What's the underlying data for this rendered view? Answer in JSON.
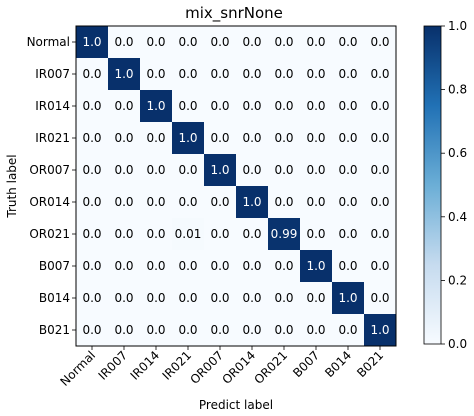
{
  "chart_data": {
    "type": "heatmap",
    "title": "mix_snrNone",
    "xlabel": "Predict label",
    "ylabel": "Truth label",
    "labels": [
      "Normal",
      "IR007",
      "IR014",
      "IR021",
      "OR007",
      "OR014",
      "OR021",
      "B007",
      "B014",
      "B021"
    ],
    "values": [
      [
        1.0,
        0.0,
        0.0,
        0.0,
        0.0,
        0.0,
        0.0,
        0.0,
        0.0,
        0.0
      ],
      [
        0.0,
        1.0,
        0.0,
        0.0,
        0.0,
        0.0,
        0.0,
        0.0,
        0.0,
        0.0
      ],
      [
        0.0,
        0.0,
        1.0,
        0.0,
        0.0,
        0.0,
        0.0,
        0.0,
        0.0,
        0.0
      ],
      [
        0.0,
        0.0,
        0.0,
        1.0,
        0.0,
        0.0,
        0.0,
        0.0,
        0.0,
        0.0
      ],
      [
        0.0,
        0.0,
        0.0,
        0.0,
        1.0,
        0.0,
        0.0,
        0.0,
        0.0,
        0.0
      ],
      [
        0.0,
        0.0,
        0.0,
        0.0,
        0.0,
        1.0,
        0.0,
        0.0,
        0.0,
        0.0
      ],
      [
        0.0,
        0.0,
        0.0,
        0.01,
        0.0,
        0.0,
        0.99,
        0.0,
        0.0,
        0.0
      ],
      [
        0.0,
        0.0,
        0.0,
        0.0,
        0.0,
        0.0,
        0.0,
        1.0,
        0.0,
        0.0
      ],
      [
        0.0,
        0.0,
        0.0,
        0.0,
        0.0,
        0.0,
        0.0,
        0.0,
        1.0,
        0.0
      ],
      [
        0.0,
        0.0,
        0.0,
        0.0,
        0.0,
        0.0,
        0.0,
        0.0,
        0.0,
        1.0
      ]
    ],
    "cell_text": [
      [
        "1.0",
        "0.0",
        "0.0",
        "0.0",
        "0.0",
        "0.0",
        "0.0",
        "0.0",
        "0.0",
        "0.0"
      ],
      [
        "0.0",
        "1.0",
        "0.0",
        "0.0",
        "0.0",
        "0.0",
        "0.0",
        "0.0",
        "0.0",
        "0.0"
      ],
      [
        "0.0",
        "0.0",
        "1.0",
        "0.0",
        "0.0",
        "0.0",
        "0.0",
        "0.0",
        "0.0",
        "0.0"
      ],
      [
        "0.0",
        "0.0",
        "0.0",
        "1.0",
        "0.0",
        "0.0",
        "0.0",
        "0.0",
        "0.0",
        "0.0"
      ],
      [
        "0.0",
        "0.0",
        "0.0",
        "0.0",
        "1.0",
        "0.0",
        "0.0",
        "0.0",
        "0.0",
        "0.0"
      ],
      [
        "0.0",
        "0.0",
        "0.0",
        "0.0",
        "0.0",
        "1.0",
        "0.0",
        "0.0",
        "0.0",
        "0.0"
      ],
      [
        "0.0",
        "0.0",
        "0.0",
        "0.01",
        "0.0",
        "0.0",
        "0.99",
        "0.0",
        "0.0",
        "0.0"
      ],
      [
        "0.0",
        "0.0",
        "0.0",
        "0.0",
        "0.0",
        "0.0",
        "0.0",
        "1.0",
        "0.0",
        "0.0"
      ],
      [
        "0.0",
        "0.0",
        "0.0",
        "0.0",
        "0.0",
        "0.0",
        "0.0",
        "0.0",
        "1.0",
        "0.0"
      ],
      [
        "0.0",
        "0.0",
        "0.0",
        "0.0",
        "0.0",
        "0.0",
        "0.0",
        "0.0",
        "0.0",
        "1.0"
      ]
    ],
    "colormap": {
      "low": "#f7fbff",
      "high": "#08306b"
    },
    "colorbar": {
      "range": [
        0.0,
        1.0
      ],
      "ticks": [
        "0.0",
        "0.2",
        "0.4",
        "0.6",
        "0.8",
        "1.0"
      ]
    },
    "grid": false,
    "legend": "colorbar-right"
  }
}
